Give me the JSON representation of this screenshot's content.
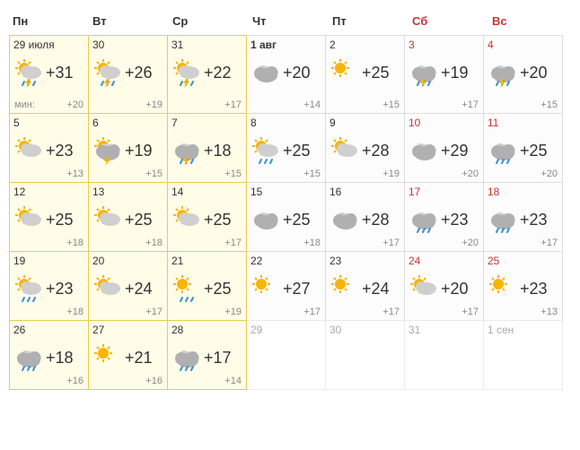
{
  "headers": [
    {
      "label": "Пн",
      "weekend": false
    },
    {
      "label": "Вт",
      "weekend": false
    },
    {
      "label": "Ср",
      "weekend": false
    },
    {
      "label": "Чт",
      "weekend": false
    },
    {
      "label": "Пт",
      "weekend": false
    },
    {
      "label": "Сб",
      "weekend": true
    },
    {
      "label": "Вс",
      "weekend": true
    }
  ],
  "days": [
    {
      "date": "29 июля",
      "weekend": false,
      "hl": true,
      "first": true,
      "icon": "sun-storm",
      "hi": "+31",
      "lo": "+20",
      "min_label": "мин:"
    },
    {
      "date": "30",
      "weekend": false,
      "hl": true,
      "first": true,
      "icon": "sun-storm",
      "hi": "+26",
      "lo": "+19"
    },
    {
      "date": "31",
      "weekend": false,
      "hl": true,
      "first": true,
      "icon": "sun-storm",
      "hi": "+22",
      "lo": "+17"
    },
    {
      "date": "1 авг",
      "weekend": false,
      "hl": false,
      "first": true,
      "bold": true,
      "icon": "cloudy",
      "hi": "+20",
      "lo": "+14"
    },
    {
      "date": "2",
      "weekend": false,
      "hl": false,
      "first": true,
      "icon": "sun",
      "hi": "+25",
      "lo": "+15"
    },
    {
      "date": "3",
      "weekend": true,
      "hl": false,
      "first": true,
      "icon": "cloud-storm",
      "hi": "+19",
      "lo": "+17"
    },
    {
      "date": "4",
      "weekend": true,
      "hl": false,
      "first": true,
      "icon": "cloud-storm",
      "hi": "+20",
      "lo": "+15"
    },
    {
      "date": "5",
      "weekend": false,
      "hl": true,
      "icon": "sun-cloud",
      "hi": "+23",
      "lo": "+13"
    },
    {
      "date": "6",
      "weekend": false,
      "hl": true,
      "icon": "sun-cloud-storm",
      "hi": "+19",
      "lo": "+15"
    },
    {
      "date": "7",
      "weekend": false,
      "hl": true,
      "icon": "cloud-storm",
      "hi": "+18",
      "lo": "+15"
    },
    {
      "date": "8",
      "weekend": false,
      "hl": false,
      "icon": "sun-cloud-rain",
      "hi": "+25",
      "lo": "+15"
    },
    {
      "date": "9",
      "weekend": false,
      "hl": false,
      "icon": "sun-cloud",
      "hi": "+28",
      "lo": "+19"
    },
    {
      "date": "10",
      "weekend": true,
      "hl": false,
      "icon": "cloudy",
      "hi": "+29",
      "lo": "+20"
    },
    {
      "date": "11",
      "weekend": true,
      "hl": false,
      "icon": "cloud-rain",
      "hi": "+25",
      "lo": "+20"
    },
    {
      "date": "12",
      "weekend": false,
      "hl": true,
      "icon": "sun-cloud",
      "hi": "+25",
      "lo": "+18"
    },
    {
      "date": "13",
      "weekend": false,
      "hl": true,
      "icon": "sun-cloud",
      "hi": "+25",
      "lo": "+18"
    },
    {
      "date": "14",
      "weekend": false,
      "hl": true,
      "icon": "sun-cloud",
      "hi": "+25",
      "lo": "+17"
    },
    {
      "date": "15",
      "weekend": false,
      "hl": false,
      "icon": "cloudy",
      "hi": "+25",
      "lo": "+18"
    },
    {
      "date": "16",
      "weekend": false,
      "hl": false,
      "icon": "cloudy",
      "hi": "+28",
      "lo": "+17"
    },
    {
      "date": "17",
      "weekend": true,
      "hl": false,
      "icon": "cloud-rain",
      "hi": "+23",
      "lo": "+20"
    },
    {
      "date": "18",
      "weekend": true,
      "hl": false,
      "icon": "cloud-rain",
      "hi": "+23",
      "lo": "+17"
    },
    {
      "date": "19",
      "weekend": false,
      "hl": true,
      "icon": "sun-cloud-rain",
      "hi": "+23",
      "lo": "+18"
    },
    {
      "date": "20",
      "weekend": false,
      "hl": true,
      "icon": "sun-cloud",
      "hi": "+24",
      "lo": "+17"
    },
    {
      "date": "21",
      "weekend": false,
      "hl": true,
      "icon": "sun-rain",
      "hi": "+25",
      "lo": "+19"
    },
    {
      "date": "22",
      "weekend": false,
      "hl": false,
      "icon": "sun",
      "hi": "+27",
      "lo": "+17"
    },
    {
      "date": "23",
      "weekend": false,
      "hl": false,
      "icon": "sun",
      "hi": "+24",
      "lo": "+17"
    },
    {
      "date": "24",
      "weekend": true,
      "hl": false,
      "icon": "sun-cloud",
      "hi": "+20",
      "lo": "+17"
    },
    {
      "date": "25",
      "weekend": true,
      "hl": false,
      "icon": "sun",
      "hi": "+23",
      "lo": "+13"
    },
    {
      "date": "26",
      "weekend": false,
      "hl": true,
      "icon": "cloud-rain",
      "hi": "+18",
      "lo": "+16"
    },
    {
      "date": "27",
      "weekend": false,
      "hl": true,
      "icon": "sun",
      "hi": "+21",
      "lo": "+16"
    },
    {
      "date": "28",
      "weekend": false,
      "hl": true,
      "icon": "cloud-rain",
      "hi": "+17",
      "lo": "+14"
    },
    {
      "date": "29",
      "weekend": false,
      "future": true
    },
    {
      "date": "30",
      "weekend": false,
      "future": true
    },
    {
      "date": "31",
      "weekend": false,
      "future": true
    },
    {
      "date": "1 сен",
      "weekend": true,
      "future": true
    }
  ],
  "colors": {
    "sun": "#f7b500",
    "cloud_light": "#cfcfcf",
    "cloud_dark": "#b0b0b0",
    "rain": "#3a8fd9",
    "bolt": "#f7b500"
  }
}
